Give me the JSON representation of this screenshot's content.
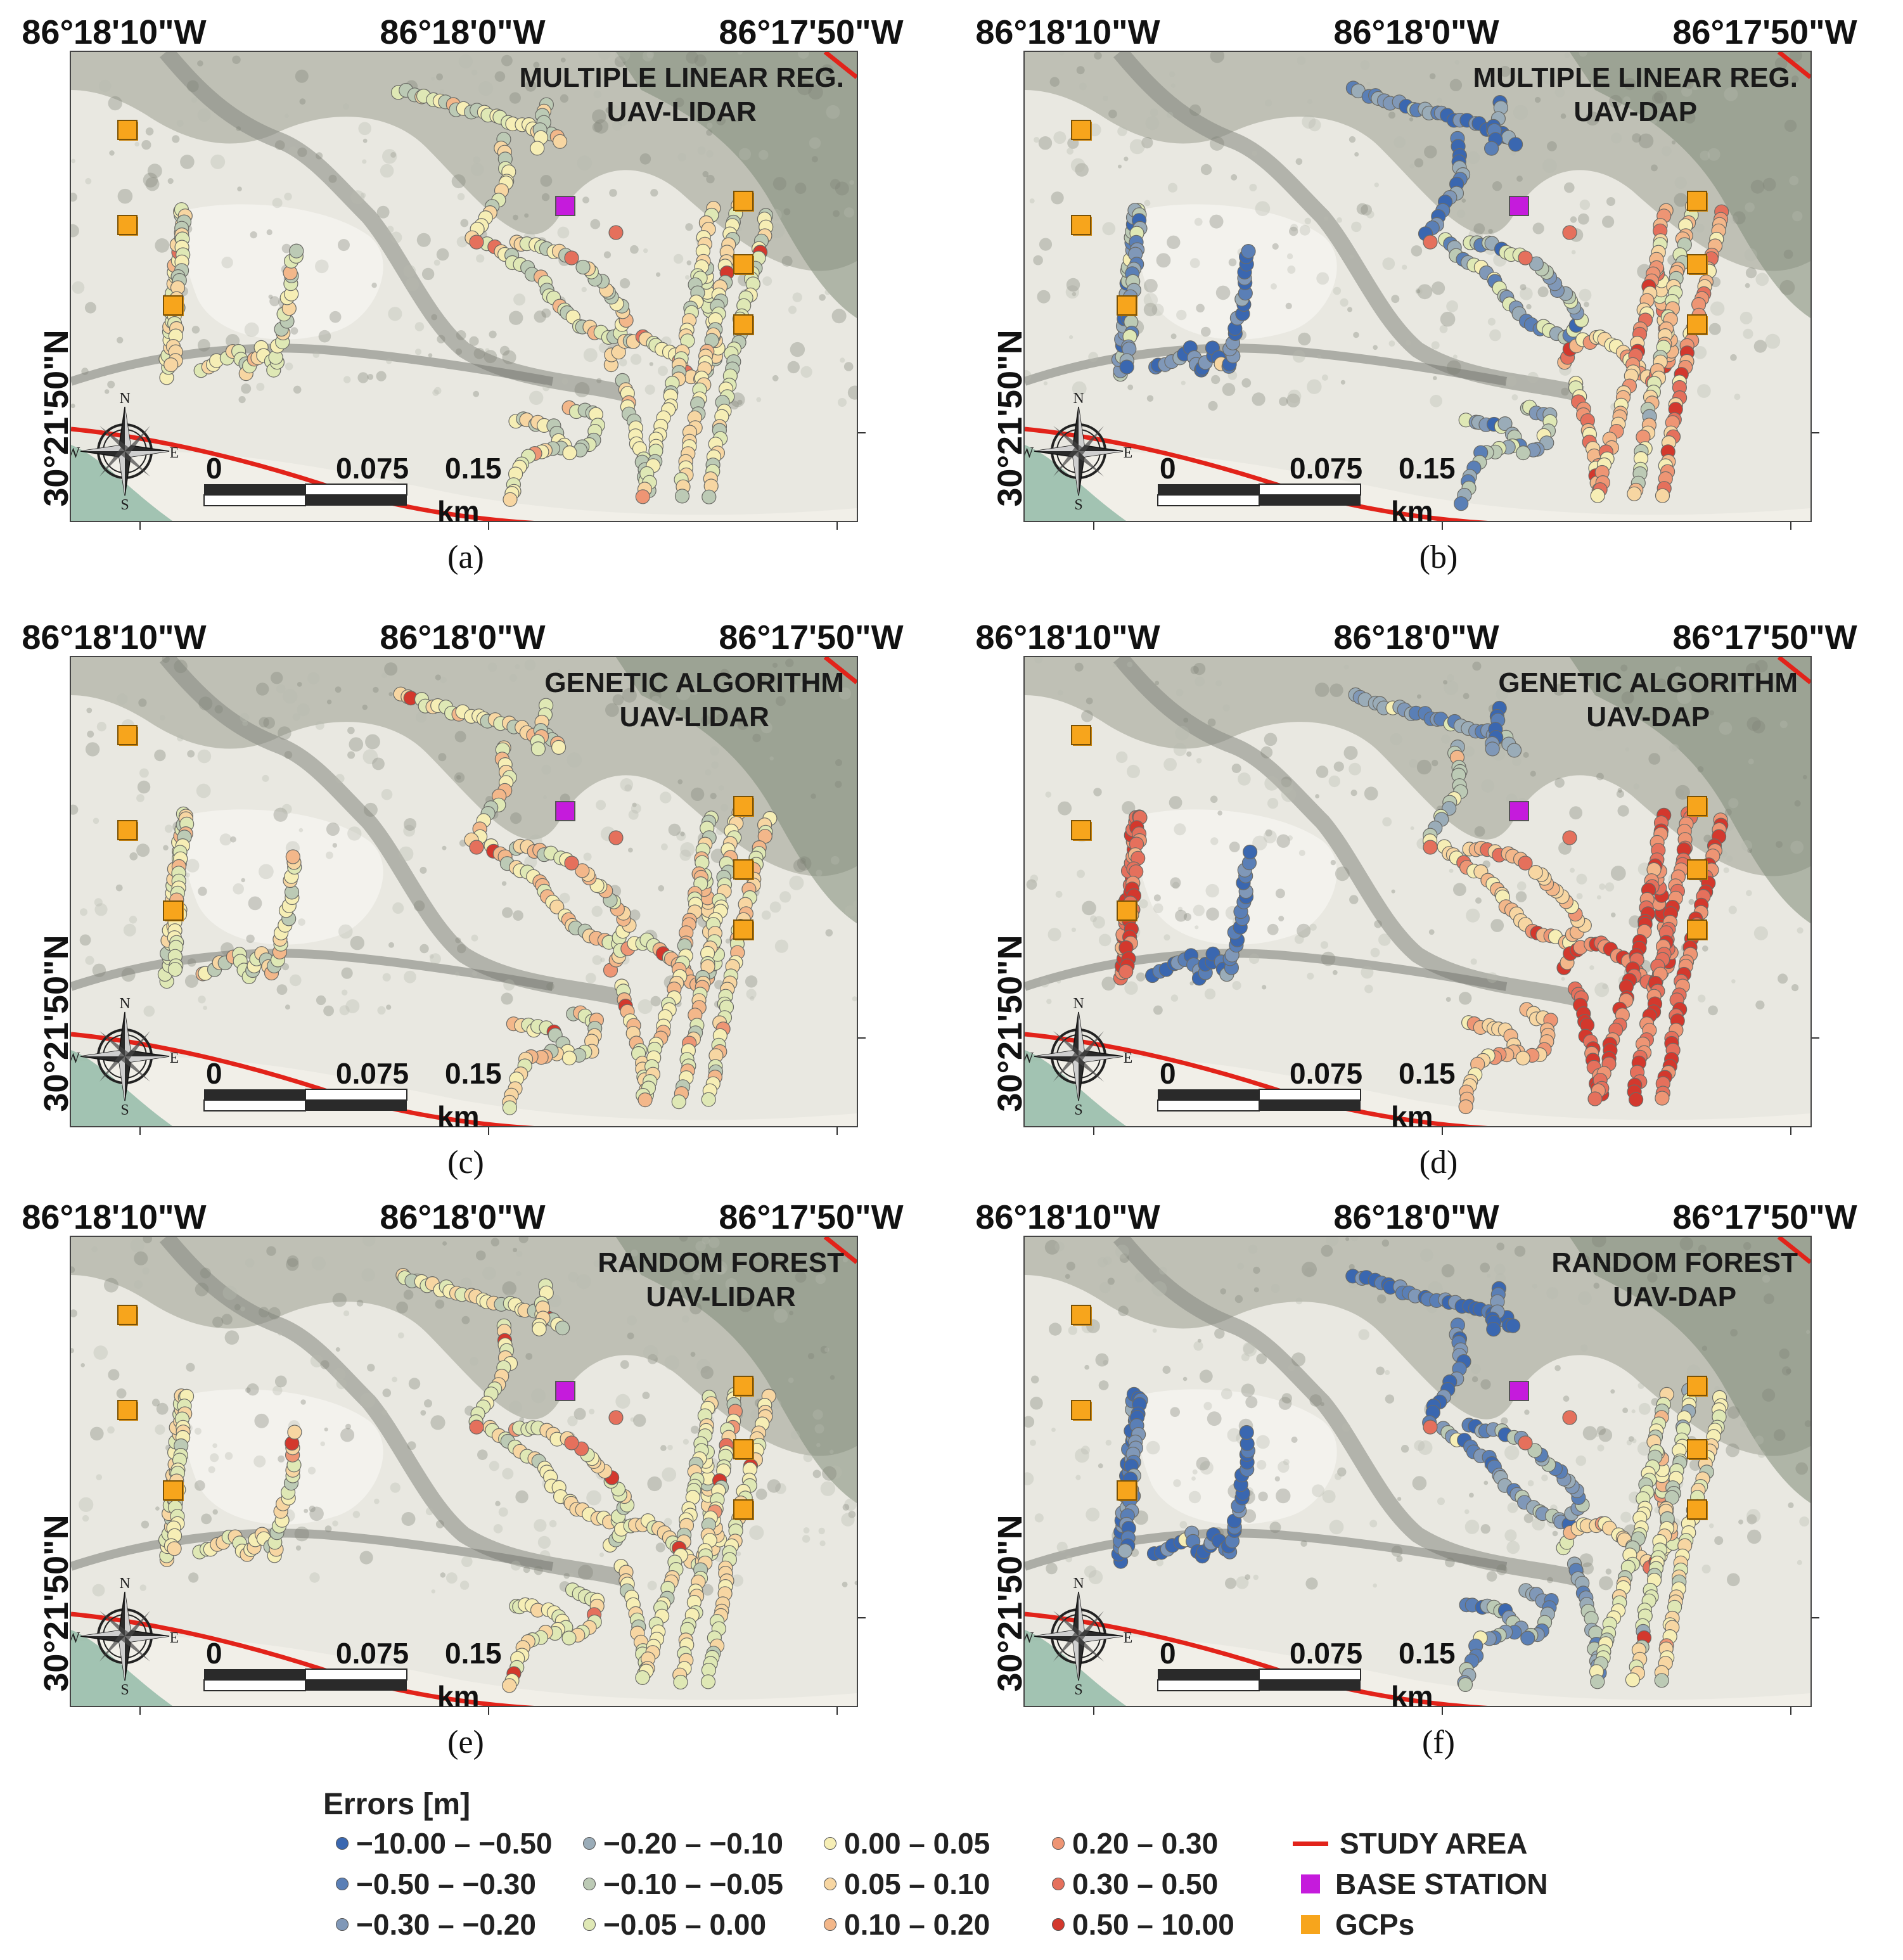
{
  "colors": {
    "err": [
      "#3a67b0",
      "#5a7fb6",
      "#8098b8",
      "#9aacb8",
      "#bccab5",
      "#dfe8b5",
      "#f6eeb5",
      "#f7d6a2",
      "#f3b78a",
      "#ee9574",
      "#e5705c",
      "#d3382d"
    ],
    "study": "#e2231a",
    "base": "#c51bdc",
    "gcp": "#f7a51c"
  },
  "axes": {
    "lon_labels": [
      "86°18'10\"W",
      "86°18'0\"W",
      "86°17'50\"W"
    ],
    "lat_label": "30°21'50\"N"
  },
  "scale": {
    "zero": "0",
    "mid": "0.075",
    "max": "0.15",
    "unit": "km"
  },
  "compass": {
    "n": "N",
    "s": "S",
    "e": "E",
    "w": "W"
  },
  "panels": [
    {
      "id": "a",
      "label": "(a)",
      "method": "MULTIPLE LINEAR REG.",
      "sensor": "UAV-LIDAR",
      "profile": "lidar_mlr"
    },
    {
      "id": "b",
      "label": "(b)",
      "method": "MULTIPLE LINEAR REG.",
      "sensor": "UAV-DAP",
      "profile": "dap_mlr"
    },
    {
      "id": "c",
      "label": "(c)",
      "method": "GENETIC ALGORITHM",
      "sensor": "UAV-LIDAR",
      "profile": "lidar_ga"
    },
    {
      "id": "d",
      "label": "(d)",
      "method": "GENETIC ALGORITHM",
      "sensor": "UAV-DAP",
      "profile": "dap_ga"
    },
    {
      "id": "e",
      "label": "(e)",
      "method": "RANDOM FOREST",
      "sensor": "UAV-LIDAR",
      "profile": "lidar_rf"
    },
    {
      "id": "f",
      "label": "(f)",
      "method": "RANDOM FOREST",
      "sensor": "UAV-DAP",
      "profile": "dap_rf"
    }
  ],
  "legend": {
    "title": "Errors [m]",
    "classes": [
      "−10.00 – −0.50",
      "−0.50 – −0.30",
      "−0.30 – −0.20",
      "−0.20 – −0.10",
      "−0.10 – −0.05",
      "−0.05 –  0.00",
      "0.00 – 0.05",
      "0.05 – 0.10",
      "0.10 – 0.20",
      "0.20 – 0.30",
      "0.30 – 0.50",
      "0.50 – 10.00"
    ],
    "study_area": "STUDY AREA",
    "base_station": "BASE STATION",
    "gcps": "GCPs"
  }
}
